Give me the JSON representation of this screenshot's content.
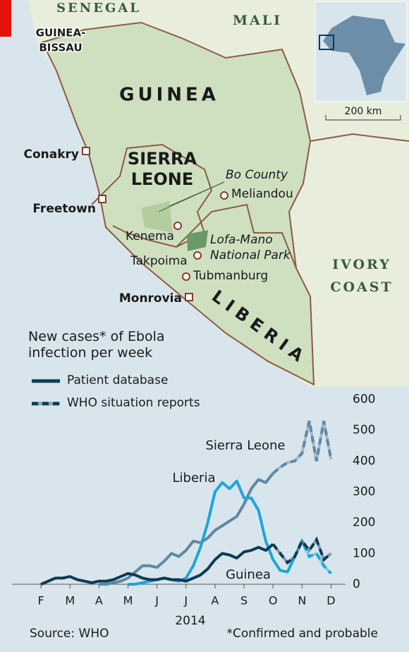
{
  "map": {
    "senegal": "SENEGAL",
    "mali": "MALI",
    "guinea_bissau": [
      "GUINEA-",
      "BISSAU"
    ],
    "guinea": "GUINEA",
    "sierra_leone": [
      "SIERRA",
      "LEONE"
    ],
    "liberia": "LIBERIA",
    "ivory_coast": [
      "IVORY",
      "COAST"
    ],
    "conakry": "Conakry",
    "freetown": "Freetown",
    "monrovia": "Monrovia",
    "bo_county": "Bo County",
    "meliandou": "Meliandou",
    "kenema": "Kenema",
    "lofa_mano": [
      "Lofa-Mano",
      "National Park"
    ],
    "takpoima": "Takpoima",
    "tubmanburg": "Tubmanburg",
    "scale": "200 km"
  },
  "chart_data": {
    "type": "line",
    "title": "New cases* of Ebola infection per week",
    "legend": [
      "Patient database",
      "WHO situation reports"
    ],
    "x": [
      2,
      2.25,
      2.5,
      2.75,
      3,
      3.25,
      3.5,
      3.75,
      4,
      4.25,
      4.5,
      4.75,
      5,
      5.25,
      5.5,
      5.75,
      6,
      6.25,
      6.5,
      6.75,
      7,
      7.25,
      7.5,
      7.75,
      8,
      8.25,
      8.5,
      8.75,
      9,
      9.25,
      9.5,
      9.75,
      10,
      10.25,
      10.5,
      10.75,
      11,
      11.25,
      11.5,
      11.75,
      12
    ],
    "series": [
      {
        "name": "Sierra Leone",
        "color": "#5f88a4",
        "values": [
          null,
          null,
          null,
          null,
          null,
          null,
          null,
          null,
          0,
          0,
          5,
          10,
          20,
          40,
          60,
          60,
          55,
          75,
          100,
          90,
          110,
          140,
          135,
          150,
          175,
          190,
          205,
          220,
          260,
          310,
          340,
          330,
          360,
          null,
          null,
          null,
          null,
          null,
          null,
          null,
          null
        ],
        "who_values": [
          null,
          null,
          null,
          null,
          null,
          null,
          null,
          null,
          null,
          null,
          null,
          null,
          null,
          null,
          null,
          null,
          null,
          null,
          null,
          null,
          null,
          null,
          null,
          null,
          null,
          null,
          null,
          null,
          null,
          null,
          null,
          null,
          360,
          380,
          395,
          400,
          425,
          530,
          400,
          530,
          405
        ]
      },
      {
        "name": "Liberia",
        "color": "#1ea6d9",
        "values": [
          null,
          null,
          null,
          null,
          null,
          null,
          null,
          null,
          null,
          null,
          null,
          null,
          0,
          0,
          5,
          10,
          15,
          20,
          15,
          10,
          20,
          60,
          120,
          200,
          300,
          330,
          310,
          335,
          280,
          280,
          240,
          140,
          80,
          45,
          40,
          90,
          null,
          null,
          null,
          null,
          null
        ],
        "who_values": [
          null,
          null,
          null,
          null,
          null,
          null,
          null,
          null,
          null,
          null,
          null,
          null,
          null,
          null,
          null,
          null,
          null,
          null,
          null,
          null,
          null,
          null,
          null,
          null,
          null,
          null,
          null,
          null,
          null,
          null,
          null,
          null,
          null,
          null,
          null,
          90,
          140,
          90,
          100,
          60,
          35
        ]
      },
      {
        "name": "Guinea",
        "color": "#0e3a55",
        "values": [
          0,
          10,
          20,
          20,
          25,
          15,
          10,
          5,
          10,
          10,
          15,
          25,
          35,
          30,
          20,
          15,
          15,
          20,
          15,
          15,
          10,
          20,
          30,
          50,
          80,
          100,
          95,
          85,
          105,
          110,
          120,
          110,
          130,
          null,
          null,
          null,
          null,
          null,
          null,
          null,
          null
        ],
        "who_values": [
          null,
          null,
          null,
          null,
          null,
          null,
          null,
          null,
          null,
          null,
          null,
          null,
          null,
          null,
          null,
          null,
          null,
          null,
          null,
          null,
          null,
          null,
          null,
          null,
          null,
          null,
          null,
          null,
          null,
          null,
          null,
          null,
          130,
          100,
          70,
          90,
          140,
          110,
          145,
          80,
          100
        ]
      }
    ],
    "xlim": [
      1,
      12.5
    ],
    "xticks": [
      {
        "value": 2,
        "label": "F"
      },
      {
        "value": 3,
        "label": "M"
      },
      {
        "value": 4,
        "label": "A"
      },
      {
        "value": 5,
        "label": "M"
      },
      {
        "value": 6,
        "label": "J"
      },
      {
        "value": 7,
        "label": "J"
      },
      {
        "value": 8,
        "label": "A"
      },
      {
        "value": 9,
        "label": "S"
      },
      {
        "value": 10,
        "label": "O"
      },
      {
        "value": 11,
        "label": "N"
      },
      {
        "value": 12,
        "label": "D"
      }
    ],
    "x_label": "2014",
    "ylim": [
      0,
      600
    ],
    "yticks": [
      0,
      100,
      200,
      300,
      400,
      500,
      600
    ],
    "grid": false,
    "source": "Source: WHO",
    "footnote": "*Confirmed and probable"
  }
}
